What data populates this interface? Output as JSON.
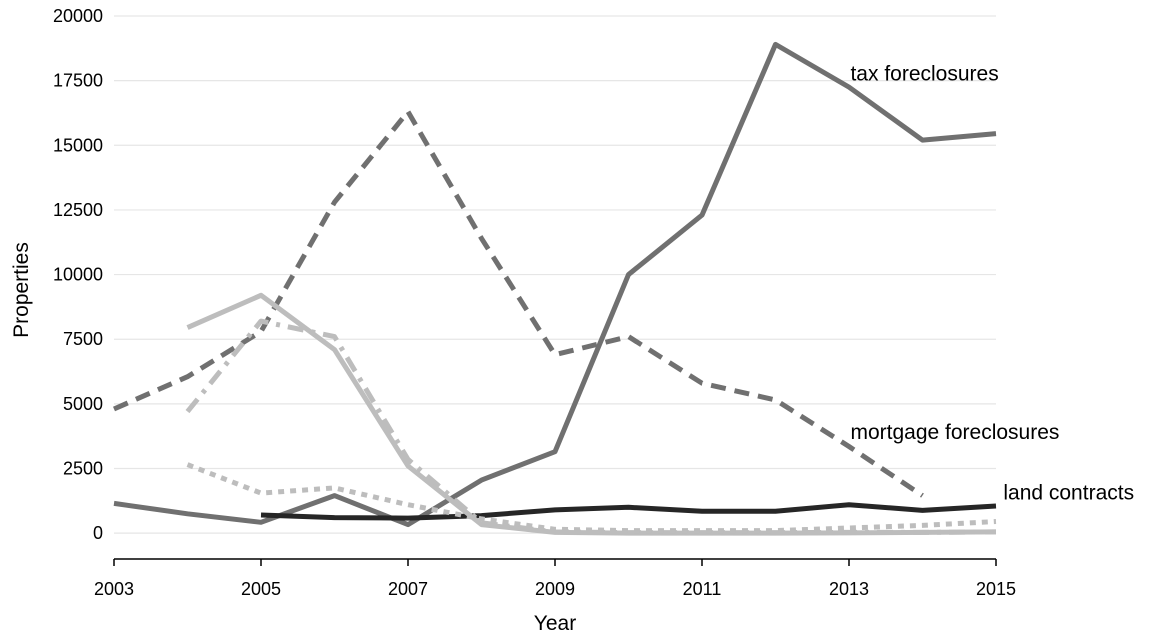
{
  "chart_data": {
    "type": "line",
    "title": "",
    "xlabel": "Year",
    "ylabel": "Properties",
    "xlim": [
      2003,
      2015
    ],
    "ylim": [
      -1000,
      20000
    ],
    "x_ticks": [
      "2003",
      "2005",
      "2007",
      "2009",
      "2011",
      "2013",
      "2015"
    ],
    "y_ticks": [
      "0",
      "2500",
      "5000",
      "7500",
      "10000",
      "12500",
      "15000",
      "17500",
      "20000"
    ],
    "grid": true,
    "legend": "none",
    "series": [
      {
        "color": "#707070",
        "style": "solid",
        "points": [
          [
            2003,
            1150
          ],
          [
            2004,
            750
          ],
          [
            2005,
            420
          ],
          [
            2006,
            1450
          ],
          [
            2007,
            330
          ],
          [
            2008,
            2050
          ],
          [
            2009,
            3150
          ],
          [
            2010,
            10000
          ],
          [
            2011,
            12300
          ],
          [
            2012,
            18900
          ],
          [
            2013,
            17250
          ],
          [
            2014,
            15200
          ],
          [
            2015,
            15450
          ]
        ]
      },
      {
        "color": "#707070",
        "style": "dashed",
        "points": [
          [
            2003,
            4800
          ],
          [
            2004,
            6050
          ],
          [
            2005,
            7800
          ],
          [
            2006,
            12800
          ],
          [
            2007,
            16300
          ],
          [
            2008,
            11400
          ],
          [
            2009,
            6900
          ],
          [
            2010,
            7600
          ],
          [
            2011,
            5800
          ],
          [
            2012,
            5150
          ],
          [
            2013,
            3350
          ],
          [
            2014,
            1450
          ]
        ]
      },
      {
        "color": "#262626",
        "style": "solid",
        "points": [
          [
            2005,
            700
          ],
          [
            2006,
            600
          ],
          [
            2007,
            580
          ],
          [
            2008,
            680
          ],
          [
            2009,
            900
          ],
          [
            2010,
            1000
          ],
          [
            2011,
            850
          ],
          [
            2012,
            850
          ],
          [
            2013,
            1100
          ],
          [
            2014,
            880
          ],
          [
            2015,
            1050
          ]
        ]
      },
      {
        "color": "#bdbdbd",
        "style": "solid",
        "points": [
          [
            2004,
            7950
          ],
          [
            2005,
            9200
          ],
          [
            2006,
            7100
          ],
          [
            2007,
            2600
          ],
          [
            2008,
            330
          ],
          [
            2009,
            30
          ],
          [
            2010,
            0
          ],
          [
            2011,
            0
          ],
          [
            2012,
            0
          ],
          [
            2013,
            10
          ],
          [
            2014,
            30
          ],
          [
            2015,
            50
          ]
        ]
      },
      {
        "color": "#bdbdbd",
        "style": "dashdot",
        "points": [
          [
            2004,
            4700
          ],
          [
            2005,
            8200
          ],
          [
            2006,
            7600
          ],
          [
            2007,
            2850
          ],
          [
            2008,
            400
          ],
          [
            2009,
            50
          ],
          [
            2010,
            20
          ],
          [
            2011,
            20
          ],
          [
            2012,
            20
          ],
          [
            2013,
            30
          ],
          [
            2014,
            30
          ],
          [
            2015,
            50
          ]
        ]
      },
      {
        "color": "#bdbdbd",
        "style": "dotted",
        "points": [
          [
            2004,
            2650
          ],
          [
            2005,
            1550
          ],
          [
            2006,
            1750
          ],
          [
            2007,
            1100
          ],
          [
            2008,
            550
          ],
          [
            2009,
            150
          ],
          [
            2010,
            100
          ],
          [
            2011,
            100
          ],
          [
            2012,
            100
          ],
          [
            2013,
            200
          ],
          [
            2014,
            300
          ],
          [
            2015,
            450
          ]
        ]
      }
    ],
    "annotations": [
      {
        "text": "tax foreclosures",
        "x": 2013.02,
        "y": 17500
      },
      {
        "text": "mortgage foreclosures",
        "x": 2013.02,
        "y": 3650
      },
      {
        "text": "land contracts",
        "x": 2015.1,
        "y": 1300
      }
    ]
  }
}
